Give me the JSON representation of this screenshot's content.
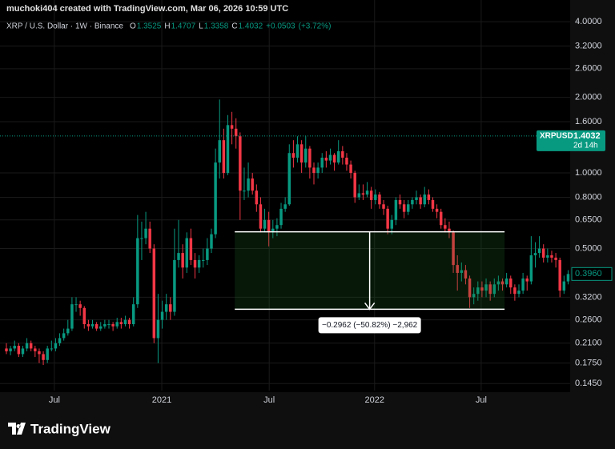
{
  "chart_data": {
    "type": "candlestick",
    "header": "muchoki404 created with TradingView.com, Mar 06, 2026 10:59 UTC",
    "legend": {
      "symbol": "XRP / U.S. Dollar · 1W · Binance",
      "o_label": "O",
      "open": 1.3525,
      "h_label": "H",
      "high": 1.4707,
      "l_label": "L",
      "low": 1.3358,
      "c_label": "C",
      "close": 1.4032,
      "change": {
        "value": 0.0503,
        "label": "+0.0503"
      },
      "change_pct": {
        "value": 3.72,
        "label": "(+3.72%)"
      }
    },
    "up_color": "#089981",
    "down_color": "#f23645",
    "log_scale": true,
    "grid": true,
    "ylim": [
      0.136,
      4.88
    ],
    "yticks": [
      {
        "value": 4,
        "label": "4.0000"
      },
      {
        "value": 3.2,
        "label": "3.2000"
      },
      {
        "value": 2.6,
        "label": "2.6000"
      },
      {
        "value": 2,
        "label": "2.0000"
      },
      {
        "value": 1.6,
        "label": "1.6000"
      },
      {
        "value": 1,
        "label": "1.0000"
      },
      {
        "value": 0.8,
        "label": "0.8000"
      },
      {
        "value": 0.65,
        "label": "0.6500"
      },
      {
        "value": 0.5,
        "label": "0.5000"
      },
      {
        "value": 0.32,
        "label": "0.3200"
      },
      {
        "value": 0.26,
        "label": "0.2600"
      },
      {
        "value": 0.21,
        "label": "0.2100"
      },
      {
        "value": 0.175,
        "label": "0.1750"
      },
      {
        "value": 0.145,
        "label": "0.1450"
      }
    ],
    "xlim": [
      -1.56,
      137.5
    ],
    "xticks": [
      {
        "value": 11.7,
        "label": "Jul"
      },
      {
        "value": 37.9,
        "label": "2021"
      },
      {
        "value": 64.1,
        "label": "Jul"
      },
      {
        "value": 89.8,
        "label": "2022"
      },
      {
        "value": 115.8,
        "label": "Jul"
      }
    ],
    "last_price": {
      "symbol": "XRPUSD",
      "value": 1.4032,
      "countdown": "2d 14h"
    },
    "price_tag": {
      "value": 0.396,
      "label": "0.3960"
    },
    "measure": {
      "from": 0.5828,
      "to": 0.2866,
      "x_range": [
        55.7,
        121.5
      ],
      "label": "−0.2962 (−50.82%) −2,962"
    },
    "brand": "TradingView",
    "candles": [
      [
        0.2,
        0.21,
        0.19,
        0.195
      ],
      [
        0.195,
        0.205,
        0.188,
        0.2
      ],
      [
        0.2,
        0.215,
        0.195,
        0.205
      ],
      [
        0.205,
        0.21,
        0.185,
        0.19
      ],
      [
        0.19,
        0.205,
        0.185,
        0.2
      ],
      [
        0.2,
        0.22,
        0.195,
        0.21
      ],
      [
        0.21,
        0.215,
        0.195,
        0.2
      ],
      [
        0.2,
        0.205,
        0.185,
        0.195
      ],
      [
        0.195,
        0.2,
        0.175,
        0.19
      ],
      [
        0.19,
        0.195,
        0.172,
        0.18
      ],
      [
        0.18,
        0.205,
        0.175,
        0.2
      ],
      [
        0.2,
        0.215,
        0.195,
        0.2
      ],
      [
        0.2,
        0.22,
        0.195,
        0.21
      ],
      [
        0.21,
        0.23,
        0.205,
        0.22
      ],
      [
        0.22,
        0.24,
        0.215,
        0.23
      ],
      [
        0.23,
        0.26,
        0.225,
        0.24
      ],
      [
        0.24,
        0.32,
        0.235,
        0.3
      ],
      [
        0.3,
        0.32,
        0.28,
        0.3
      ],
      [
        0.3,
        0.31,
        0.27,
        0.29
      ],
      [
        0.29,
        0.295,
        0.24,
        0.25
      ],
      [
        0.25,
        0.26,
        0.235,
        0.245
      ],
      [
        0.245,
        0.26,
        0.24,
        0.25
      ],
      [
        0.25,
        0.255,
        0.235,
        0.24
      ],
      [
        0.24,
        0.255,
        0.235,
        0.245
      ],
      [
        0.245,
        0.26,
        0.24,
        0.25
      ],
      [
        0.25,
        0.26,
        0.24,
        0.25
      ],
      [
        0.25,
        0.255,
        0.235,
        0.245
      ],
      [
        0.245,
        0.265,
        0.24,
        0.255
      ],
      [
        0.255,
        0.265,
        0.24,
        0.25
      ],
      [
        0.25,
        0.27,
        0.245,
        0.26
      ],
      [
        0.26,
        0.265,
        0.24,
        0.25
      ],
      [
        0.25,
        0.32,
        0.245,
        0.3
      ],
      [
        0.3,
        0.68,
        0.29,
        0.55
      ],
      [
        0.55,
        0.64,
        0.45,
        0.55
      ],
      [
        0.55,
        0.7,
        0.52,
        0.6
      ],
      [
        0.6,
        0.64,
        0.48,
        0.5
      ],
      [
        0.5,
        0.52,
        0.21,
        0.22
      ],
      [
        0.22,
        0.33,
        0.175,
        0.26
      ],
      [
        0.26,
        0.31,
        0.24,
        0.28
      ],
      [
        0.28,
        0.33,
        0.26,
        0.3
      ],
      [
        0.3,
        0.32,
        0.26,
        0.28
      ],
      [
        0.28,
        0.6,
        0.27,
        0.45
      ],
      [
        0.45,
        0.65,
        0.42,
        0.48
      ],
      [
        0.48,
        0.52,
        0.38,
        0.42
      ],
      [
        0.42,
        0.58,
        0.4,
        0.55
      ],
      [
        0.55,
        0.6,
        0.43,
        0.45
      ],
      [
        0.45,
        0.48,
        0.38,
        0.42
      ],
      [
        0.42,
        0.47,
        0.4,
        0.45
      ],
      [
        0.45,
        0.5,
        0.42,
        0.45
      ],
      [
        0.45,
        0.55,
        0.43,
        0.5
      ],
      [
        0.5,
        0.6,
        0.48,
        0.57
      ],
      [
        0.57,
        1.25,
        0.55,
        1.1
      ],
      [
        1.1,
        1.96,
        0.95,
        1.35
      ],
      [
        1.35,
        1.5,
        0.95,
        1.0
      ],
      [
        1.0,
        1.7,
        0.98,
        1.55
      ],
      [
        1.55,
        1.75,
        1.3,
        1.5
      ],
      [
        1.5,
        1.65,
        1.25,
        1.4
      ],
      [
        1.4,
        1.45,
        0.65,
        0.85
      ],
      [
        0.85,
        1.05,
        0.78,
        0.85
      ],
      [
        0.85,
        1.1,
        0.8,
        0.95
      ],
      [
        0.95,
        1.0,
        0.82,
        0.85
      ],
      [
        0.85,
        0.9,
        0.7,
        0.75
      ],
      [
        0.75,
        0.8,
        0.58,
        0.6
      ],
      [
        0.6,
        0.72,
        0.58,
        0.65
      ],
      [
        0.65,
        0.7,
        0.51,
        0.58
      ],
      [
        0.58,
        0.65,
        0.55,
        0.6
      ],
      [
        0.6,
        0.66,
        0.56,
        0.62
      ],
      [
        0.62,
        0.76,
        0.6,
        0.72
      ],
      [
        0.72,
        0.8,
        0.7,
        0.75
      ],
      [
        0.75,
        1.3,
        0.74,
        1.2
      ],
      [
        1.2,
        1.35,
        1.05,
        1.15
      ],
      [
        1.15,
        1.4,
        1.1,
        1.3
      ],
      [
        1.3,
        1.35,
        1.0,
        1.1
      ],
      [
        1.1,
        1.4,
        1.05,
        1.25
      ],
      [
        1.25,
        1.28,
        0.95,
        1.05
      ],
      [
        1.05,
        1.1,
        0.9,
        1.0
      ],
      [
        1.0,
        1.1,
        0.95,
        1.05
      ],
      [
        1.05,
        1.2,
        1.0,
        1.15
      ],
      [
        1.15,
        1.22,
        1.05,
        1.12
      ],
      [
        1.12,
        1.25,
        1.08,
        1.18
      ],
      [
        1.18,
        1.2,
        1.02,
        1.1
      ],
      [
        1.1,
        1.35,
        1.08,
        1.22
      ],
      [
        1.22,
        1.28,
        1.08,
        1.15
      ],
      [
        1.15,
        1.2,
        1.02,
        1.08
      ],
      [
        1.08,
        1.12,
        0.95,
        1.0
      ],
      [
        1.0,
        1.02,
        0.76,
        0.8
      ],
      [
        0.8,
        0.9,
        0.78,
        0.83
      ],
      [
        0.83,
        0.9,
        0.78,
        0.82
      ],
      [
        0.82,
        0.92,
        0.8,
        0.85
      ],
      [
        0.85,
        0.88,
        0.72,
        0.78
      ],
      [
        0.78,
        0.86,
        0.75,
        0.82
      ],
      [
        0.82,
        0.84,
        0.72,
        0.75
      ],
      [
        0.75,
        0.78,
        0.68,
        0.72
      ],
      [
        0.72,
        0.74,
        0.57,
        0.6
      ],
      [
        0.6,
        0.68,
        0.57,
        0.65
      ],
      [
        0.65,
        0.8,
        0.62,
        0.78
      ],
      [
        0.78,
        0.82,
        0.72,
        0.75
      ],
      [
        0.75,
        0.78,
        0.66,
        0.7
      ],
      [
        0.7,
        0.78,
        0.68,
        0.75
      ],
      [
        0.75,
        0.8,
        0.72,
        0.78
      ],
      [
        0.78,
        0.85,
        0.75,
        0.8
      ],
      [
        0.8,
        0.82,
        0.72,
        0.75
      ],
      [
        0.75,
        0.88,
        0.73,
        0.82
      ],
      [
        0.82,
        0.86,
        0.75,
        0.78
      ],
      [
        0.78,
        0.8,
        0.7,
        0.72
      ],
      [
        0.72,
        0.75,
        0.66,
        0.7
      ],
      [
        0.7,
        0.72,
        0.6,
        0.62
      ],
      [
        0.62,
        0.66,
        0.58,
        0.6
      ],
      [
        0.6,
        0.64,
        0.55,
        0.58
      ],
      [
        0.58,
        0.59,
        0.4,
        0.43
      ],
      [
        0.43,
        0.47,
        0.34,
        0.4
      ],
      [
        0.4,
        0.44,
        0.37,
        0.41
      ],
      [
        0.41,
        0.43,
        0.36,
        0.38
      ],
      [
        0.38,
        0.39,
        0.29,
        0.32
      ],
      [
        0.32,
        0.35,
        0.3,
        0.33
      ],
      [
        0.33,
        0.37,
        0.31,
        0.35
      ],
      [
        0.35,
        0.37,
        0.32,
        0.34
      ],
      [
        0.34,
        0.38,
        0.32,
        0.36
      ],
      [
        0.36,
        0.37,
        0.31,
        0.33
      ],
      [
        0.33,
        0.38,
        0.32,
        0.36
      ],
      [
        0.36,
        0.39,
        0.34,
        0.37
      ],
      [
        0.37,
        0.38,
        0.34,
        0.36
      ],
      [
        0.36,
        0.4,
        0.35,
        0.38
      ],
      [
        0.38,
        0.39,
        0.33,
        0.35
      ],
      [
        0.35,
        0.36,
        0.31,
        0.33
      ],
      [
        0.33,
        0.36,
        0.32,
        0.34
      ],
      [
        0.34,
        0.4,
        0.33,
        0.38
      ],
      [
        0.38,
        0.39,
        0.34,
        0.37
      ],
      [
        0.37,
        0.56,
        0.36,
        0.47
      ],
      [
        0.47,
        0.53,
        0.42,
        0.48
      ],
      [
        0.48,
        0.56,
        0.46,
        0.5
      ],
      [
        0.5,
        0.52,
        0.44,
        0.46
      ],
      [
        0.46,
        0.5,
        0.44,
        0.47
      ],
      [
        0.47,
        0.49,
        0.44,
        0.46
      ],
      [
        0.46,
        0.48,
        0.42,
        0.45
      ],
      [
        0.45,
        0.46,
        0.32,
        0.34
      ],
      [
        0.34,
        0.39,
        0.33,
        0.37
      ],
      [
        0.37,
        0.41,
        0.36,
        0.396
      ]
    ]
  }
}
